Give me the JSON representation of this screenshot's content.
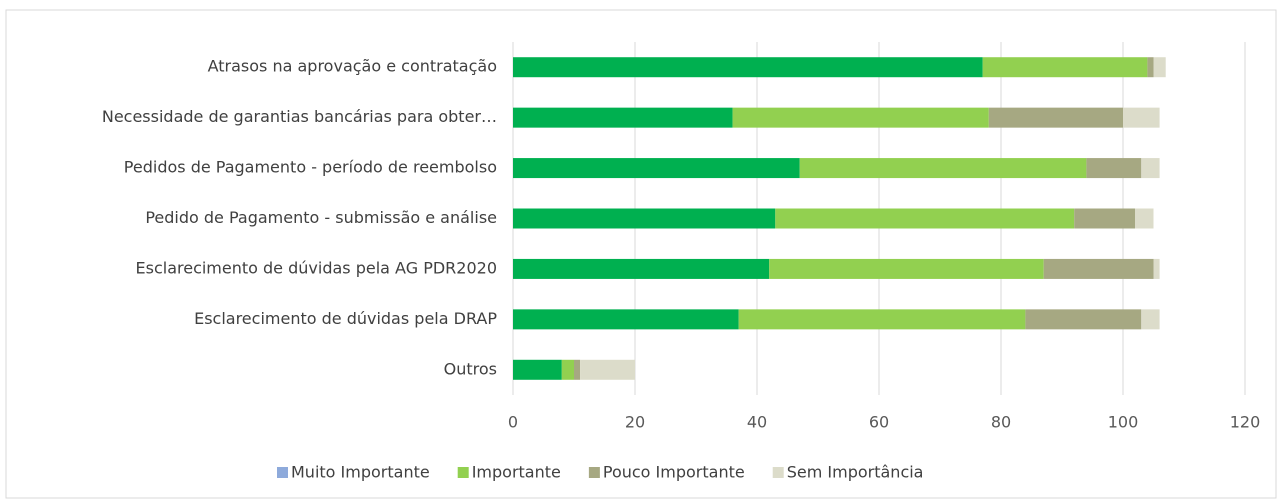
{
  "chart_data": {
    "type": "stacked_bar_horizontal",
    "categories": [
      "Atrasos na aprovação e contratação",
      "Necessidade de garantias bancárias para obter…",
      "Pedidos de Pagamento - período de reembolso",
      "Pedido de Pagamento - submissão e análise",
      "Esclarecimento de dúvidas pela AG PDR2020",
      "Esclarecimento de dúvidas pela DRAP",
      "Outros"
    ],
    "series": [
      {
        "name": "Muito Importante",
        "color": "#00b050",
        "legend_color": "#8eaadb",
        "values": [
          77,
          36,
          47,
          43,
          42,
          37,
          8
        ]
      },
      {
        "name": "Importante",
        "color": "#92d050",
        "values": [
          27,
          42,
          47,
          49,
          45,
          47,
          2
        ]
      },
      {
        "name": "Pouco Importante",
        "color": "#a6a882",
        "values": [
          1,
          22,
          9,
          10,
          18,
          19,
          1
        ]
      },
      {
        "name": "Sem Importância",
        "color": "#dcdcca",
        "values": [
          2,
          6,
          3,
          3,
          1,
          3,
          9
        ]
      }
    ],
    "xlim": [
      0,
      120
    ],
    "xticks": [
      0,
      20,
      40,
      60,
      80,
      100,
      120
    ],
    "grid": true,
    "legend": "bottom"
  }
}
